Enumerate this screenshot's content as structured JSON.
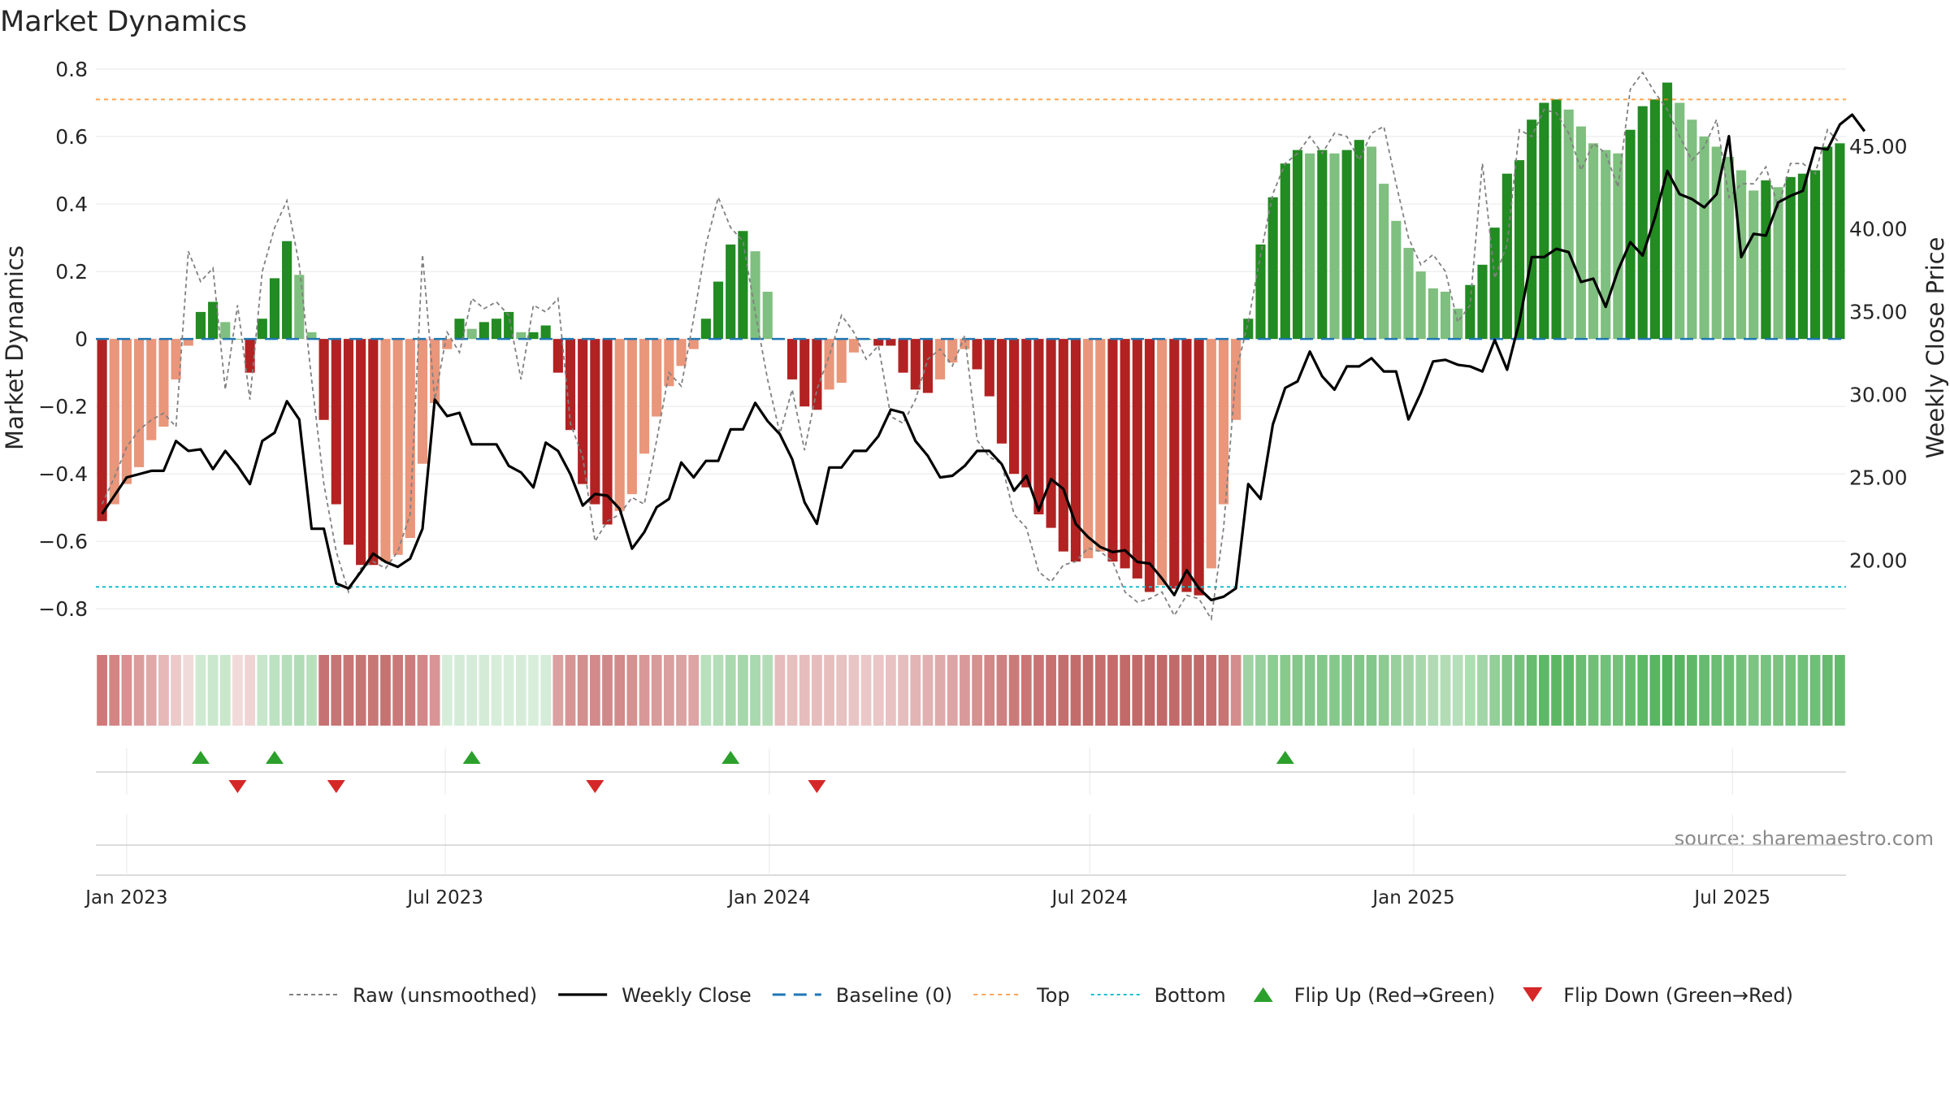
{
  "chart_data": {
    "type": "bar",
    "title": "Market Dynamics",
    "ylabel_left": "Market Dynamics",
    "ylabel_right": "Weekly Close Price",
    "ylim_left": [
      -0.85,
      0.8
    ],
    "yticks_left": [
      0.8,
      0.6,
      0.4,
      0.2,
      0,
      -0.2,
      -0.4,
      -0.6,
      -0.8
    ],
    "ytick_labels_left": [
      "0.8",
      "0.6",
      "0.4",
      "0.2",
      "0",
      "−0.2",
      "−0.4",
      "−0.6",
      "−0.8"
    ],
    "ylim_right": [
      16.05,
      49.65
    ],
    "yticks_right": [
      45,
      40,
      35,
      30,
      25,
      20
    ],
    "ytick_labels_right": [
      "45.00",
      "40.00",
      "35.00",
      "30.00",
      "25.00",
      "20.00"
    ],
    "x_start": "2022-12-18",
    "x_step_days": 7,
    "xtick_labels": [
      {
        "date": "2023-01-01",
        "label": "Jan 2023"
      },
      {
        "date": "2023-07-01",
        "label": "Jul 2023"
      },
      {
        "date": "2024-01-01",
        "label": "Jan 2024"
      },
      {
        "date": "2024-07-01",
        "label": "Jul 2024"
      },
      {
        "date": "2025-01-01",
        "label": "Jan 2025"
      },
      {
        "date": "2025-07-01",
        "label": "Jul 2025"
      }
    ],
    "top_level": 0.71,
    "bottom_level": -0.735,
    "baseline": 0,
    "dynamics": [
      -0.54,
      -0.49,
      -0.43,
      -0.38,
      -0.3,
      -0.26,
      -0.12,
      -0.02,
      0.08,
      0.11,
      0.05,
      0,
      -0.1,
      0.06,
      0.18,
      0.29,
      0.19,
      0.02,
      -0.24,
      -0.49,
      -0.61,
      -0.67,
      -0.67,
      -0.66,
      -0.64,
      -0.59,
      -0.37,
      -0.19,
      -0.03,
      0.06,
      0.03,
      0.05,
      0.06,
      0.08,
      0.02,
      0.02,
      0.04,
      -0.1,
      -0.27,
      -0.43,
      -0.49,
      -0.55,
      -0.51,
      -0.46,
      -0.34,
      -0.23,
      -0.14,
      -0.08,
      -0.03,
      0.06,
      0.17,
      0.28,
      0.32,
      0.26,
      0.14,
      0,
      -0.12,
      -0.2,
      -0.21,
      -0.15,
      -0.13,
      -0.04,
      0,
      -0.02,
      -0.02,
      -0.1,
      -0.15,
      -0.16,
      -0.12,
      -0.07,
      -0.03,
      -0.09,
      -0.17,
      -0.31,
      -0.4,
      -0.44,
      -0.52,
      -0.56,
      -0.63,
      -0.66,
      -0.65,
      -0.63,
      -0.66,
      -0.68,
      -0.71,
      -0.75,
      -0.73,
      -0.74,
      -0.75,
      -0.76,
      -0.68,
      -0.49,
      -0.24,
      0.06,
      0.28,
      0.42,
      0.52,
      0.56,
      0.55,
      0.56,
      0.55,
      0.56,
      0.59,
      0.57,
      0.46,
      0.35,
      0.27,
      0.2,
      0.15,
      0.14,
      0.09,
      0.16,
      0.22,
      0.33,
      0.49,
      0.53,
      0.65,
      0.7,
      0.71,
      0.68,
      0.63,
      0.58,
      0.56,
      0.55,
      0.62,
      0.69,
      0.71,
      0.76,
      0.7,
      0.65,
      0.6,
      0.57,
      0.54,
      0.5,
      0.44,
      0.47,
      0.45,
      0.48,
      0.49,
      0.5,
      0.57,
      0.58
    ],
    "dynamics_raw": [
      -0.49,
      -0.41,
      -0.32,
      -0.27,
      -0.24,
      -0.22,
      -0.26,
      0.26,
      0.17,
      0.21,
      -0.15,
      0.1,
      -0.18,
      0.2,
      0.33,
      0.41,
      0.22,
      -0.12,
      -0.43,
      -0.63,
      -0.75,
      -0.68,
      -0.66,
      -0.68,
      -0.63,
      -0.52,
      0.25,
      -0.18,
      0.02,
      -0.04,
      0.12,
      0.09,
      0.11,
      0.07,
      -0.12,
      0.1,
      0.08,
      0.12,
      -0.25,
      -0.35,
      -0.6,
      -0.54,
      -0.52,
      -0.47,
      -0.49,
      -0.3,
      -0.1,
      -0.14,
      0.06,
      0.28,
      0.42,
      0.33,
      0.29,
      0.08,
      -0.12,
      -0.28,
      -0.15,
      -0.33,
      -0.15,
      -0.05,
      0.07,
      0.02,
      -0.06,
      -0.02,
      -0.23,
      -0.25,
      -0.18,
      -0.06,
      -0.03,
      -0.08,
      0.01,
      -0.3,
      -0.35,
      -0.37,
      -0.52,
      -0.56,
      -0.69,
      -0.72,
      -0.67,
      -0.66,
      -0.62,
      -0.63,
      -0.66,
      -0.75,
      -0.78,
      -0.77,
      -0.75,
      -0.82,
      -0.76,
      -0.77,
      -0.83,
      -0.56,
      -0.1,
      0.05,
      0.25,
      0.43,
      0.52,
      0.55,
      0.6,
      0.55,
      0.61,
      0.6,
      0.53,
      0.61,
      0.63,
      0.46,
      0.3,
      0.22,
      0.25,
      0.2,
      0.05,
      0.1,
      0.52,
      0.18,
      0.28,
      0.62,
      0.6,
      0.68,
      0.67,
      0.61,
      0.5,
      0.58,
      0.55,
      0.45,
      0.74,
      0.79,
      0.73,
      0.68,
      0.6,
      0.53,
      0.57,
      0.65,
      0.42,
      0.46,
      0.46,
      0.51,
      0.39,
      0.52,
      0.52,
      0.49,
      0.62,
      0.58
    ],
    "weekly_close": [
      22.8,
      23.9,
      25.0,
      25.2,
      25.4,
      25.4,
      27.2,
      26.6,
      26.7,
      25.5,
      26.6,
      25.7,
      24.6,
      27.2,
      27.7,
      29.6,
      28.5,
      21.9,
      21.9,
      18.6,
      18.3,
      19.3,
      20.4,
      19.9,
      19.6,
      20.1,
      21.9,
      29.7,
      28.7,
      28.9,
      27.0,
      27.0,
      27.0,
      25.7,
      25.3,
      24.4,
      27.1,
      26.6,
      25.2,
      23.3,
      24.0,
      23.9,
      23.1,
      20.7,
      21.7,
      23.2,
      23.7,
      25.9,
      25.0,
      26.0,
      26.0,
      27.9,
      27.9,
      29.5,
      28.4,
      27.6,
      26.1,
      23.5,
      22.2,
      25.6,
      25.6,
      26.6,
      26.6,
      27.5,
      29.1,
      28.9,
      27.2,
      26.3,
      25.0,
      25.1,
      25.7,
      26.6,
      26.6,
      25.8,
      24.2,
      25.1,
      23.0,
      24.9,
      24.3,
      22.2,
      21.4,
      20.8,
      20.5,
      20.6,
      19.9,
      19.8,
      18.9,
      17.9,
      19.4,
      18.3,
      17.6,
      17.8,
      18.3,
      24.6,
      23.7,
      28.2,
      30.4,
      30.8,
      32.6,
      31.1,
      30.3,
      31.7,
      31.7,
      32.2,
      31.4,
      31.4,
      28.5,
      30.1,
      32.0,
      32.1,
      31.8,
      31.7,
      31.4,
      33.3,
      31.5,
      34.4,
      38.3,
      38.3,
      38.8,
      38.6,
      36.8,
      37.0,
      35.3,
      37.5,
      39.2,
      38.4,
      40.7,
      43.5,
      42.1,
      41.8,
      41.3,
      42.1,
      45.6,
      38.3,
      39.7,
      39.6,
      41.6,
      42.0,
      42.3,
      44.9,
      44.8,
      46.3,
      46.9,
      45.9
    ],
    "band_colors": [
      "#d07878",
      "#d58484",
      "#d99090",
      "#dc9c9c",
      "#e0a8a8",
      "#e6b8b8",
      "#eccaca",
      "#f1dada",
      "#cfead2",
      "#cbe8ce",
      "#c8e7cb",
      "#f2dada",
      "#efd4d4",
      "#c6e7ca",
      "#bde2c2",
      "#b5dfba",
      "#b0ddb6",
      "#b8e0bc",
      "#c77272",
      "#c77474",
      "#c87676",
      "#c77474",
      "#c87676",
      "#c77272",
      "#ca7878",
      "#cc7c7c",
      "#d28888",
      "#d99595",
      "#d6eed9",
      "#d4ecd7",
      "#d5ecd8",
      "#d4ecd7",
      "#d6edd9",
      "#d8eedb",
      "#d6ecd8",
      "#d8eedb",
      "#d5ecd8",
      "#dba0a0",
      "#d79494",
      "#d48e8e",
      "#d28a8a",
      "#d18888",
      "#d28a8a",
      "#d59090",
      "#d89898",
      "#d99a9a",
      "#daa0a0",
      "#dba2a2",
      "#dca4a4",
      "#b8e0bc",
      "#b4deb8",
      "#aad9ae",
      "#a5d7aa",
      "#a9d9ae",
      "#b3ddb7",
      "#e6bcbc",
      "#e7bfbf",
      "#e6bcbc",
      "#e6bcbc",
      "#e7bebe",
      "#e8c1c1",
      "#e9c4c4",
      "#ebc8c8",
      "#eac6c6",
      "#e8c2c2",
      "#e6bdbd",
      "#e3b4b4",
      "#e1b0b0",
      "#dfaaaa",
      "#dca4a4",
      "#d89a9a",
      "#d59090",
      "#d28888",
      "#cf8080",
      "#cb7a7a",
      "#c97676",
      "#c87474",
      "#c67070",
      "#c46e6e",
      "#c36c6c",
      "#c36c6c",
      "#c46e6e",
      "#c36c6c",
      "#c26a6a",
      "#c26a6a",
      "#c16868",
      "#c16868",
      "#c26a6a",
      "#c36c6c",
      "#c26a6a",
      "#c46e6e",
      "#c77474",
      "#d58c8c",
      "#9fd3a4",
      "#97d09c",
      "#8ecc94",
      "#88c98e",
      "#84c78a",
      "#86c88c",
      "#84c78a",
      "#86c88c",
      "#84c78a",
      "#82c688",
      "#84c78a",
      "#8dcb93",
      "#98d09d",
      "#a2d4a7",
      "#aad8ae",
      "#b0dbb4",
      "#b2dcb6",
      "#b6deba",
      "#ace0b0",
      "#a2d5a7",
      "#94cf99",
      "#80c686",
      "#76c27d",
      "#68bc70",
      "#5fb868",
      "#5cb765",
      "#62b96a",
      "#6abd72",
      "#6fbf77",
      "#72c07a",
      "#74c17c",
      "#68bc70",
      "#5db866",
      "#58b562",
      "#4fb159",
      "#58b562",
      "#5fb868",
      "#66bb6e",
      "#6abd72",
      "#6ebf76",
      "#74c17c",
      "#7cc483",
      "#78c27f",
      "#7ac381",
      "#76c27d",
      "#72c07a",
      "#70bf78",
      "#66bb6e",
      "#64ba6c"
    ],
    "flip_up_dates": [
      "2023-02-12",
      "2023-03-26",
      "2023-07-16",
      "2023-12-10",
      "2024-10-20"
    ],
    "flip_down_dates": [
      "2023-03-05",
      "2023-04-30",
      "2023-09-24",
      "2024-01-28"
    ],
    "legend": [
      {
        "label": "Raw (unsmoothed)",
        "style": "raw"
      },
      {
        "label": "Weekly Close",
        "style": "close"
      },
      {
        "label": "Baseline (0)",
        "style": "baseline"
      },
      {
        "label": "Top",
        "style": "top"
      },
      {
        "label": "Bottom",
        "style": "bottom"
      },
      {
        "label": "Flip Up (Red→Green)",
        "style": "flipup"
      },
      {
        "label": "Flip Down (Green→Red)",
        "style": "flipdown"
      }
    ],
    "legend_placement": "bottom-center",
    "grid": true,
    "source": "source: sharemaestro.com"
  },
  "colors": {
    "strong_red": "#b22222",
    "light_red": "#e9967a",
    "strong_green": "#228b22",
    "light_green": "#7fbf7f",
    "close_line": "#000000",
    "raw_line": "#808080",
    "baseline": "#1f77b4",
    "top": "#ff7f0e",
    "bottom": "#17becf",
    "flip_up": "#2ca02c",
    "flip_down": "#d62728"
  }
}
